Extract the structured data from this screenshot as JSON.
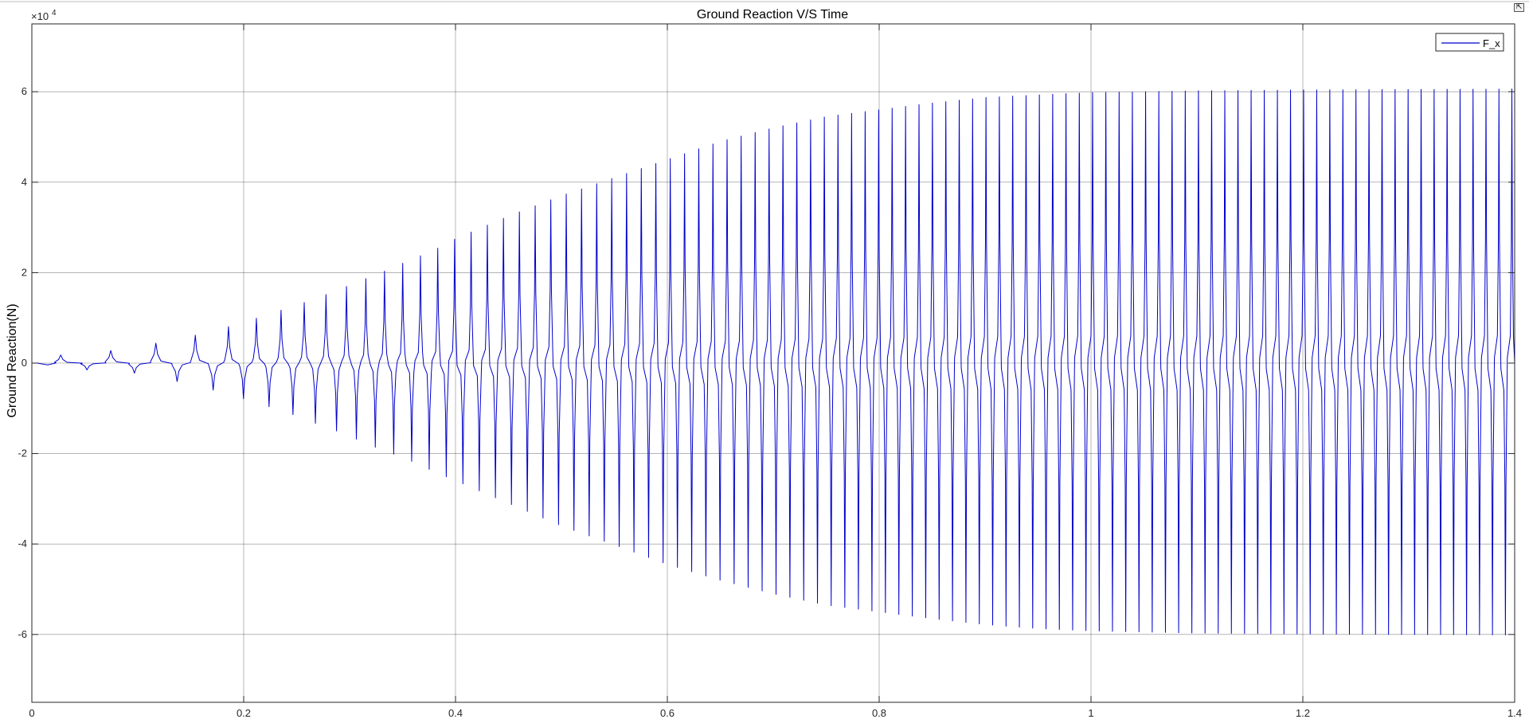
{
  "chart_data": {
    "type": "line",
    "title": "Ground Reaction V/S Time",
    "xlabel": "",
    "ylabel": "Ground Reaction(N)",
    "y_exponent_label": "×10",
    "y_exponent": "4",
    "xlim": [
      0,
      1.4
    ],
    "ylim": [
      -7.5,
      7.5
    ],
    "x_ticks": [
      0,
      0.2,
      0.4,
      0.6,
      0.8,
      1,
      1.2,
      1.4
    ],
    "x_tick_labels": [
      "0",
      "0.2",
      "0.4",
      "0.6",
      "0.8",
      "1",
      "1.2",
      "1.4"
    ],
    "y_ticks": [
      -6,
      -4,
      -2,
      0,
      2,
      4,
      6
    ],
    "y_tick_labels": [
      "-6",
      "-4",
      "-2",
      "0",
      "2",
      "4",
      "6"
    ],
    "grid": true,
    "legend_position": "top-right",
    "series": [
      {
        "name": "F_x",
        "color": "#0000cc",
        "description_values": {
          "positive_peaks": [
            [
              0.045,
              0.18
            ],
            [
              0.097,
              0.35
            ],
            [
              0.135,
              0.52
            ],
            [
              0.167,
              0.68
            ],
            [
              0.195,
              0.87
            ],
            [
              0.22,
              1.05
            ],
            [
              0.243,
              1.23
            ],
            [
              0.265,
              1.4
            ],
            [
              0.285,
              1.58
            ],
            [
              0.304,
              1.76
            ],
            [
              0.322,
              1.93
            ],
            [
              0.34,
              2.1
            ],
            [
              0.357,
              2.28
            ],
            [
              0.373,
              2.43
            ],
            [
              0.389,
              2.6
            ],
            [
              0.4,
              2.75
            ],
            [
              0.45,
              3.25
            ],
            [
              0.5,
              3.7
            ],
            [
              0.55,
              4.1
            ],
            [
              0.6,
              4.5
            ],
            [
              0.65,
              4.9
            ],
            [
              0.7,
              5.2
            ],
            [
              0.75,
              5.45
            ],
            [
              0.8,
              5.6
            ],
            [
              0.85,
              5.75
            ],
            [
              0.9,
              5.87
            ],
            [
              0.95,
              5.93
            ],
            [
              1.0,
              5.98
            ],
            [
              1.1,
              6.02
            ],
            [
              1.2,
              6.04
            ],
            [
              1.3,
              6.05
            ],
            [
              1.4,
              6.06
            ]
          ],
          "negative_peaks": [
            [
              0.075,
              -0.15
            ],
            [
              0.12,
              -0.3
            ],
            [
              0.152,
              -0.5
            ],
            [
              0.182,
              -0.65
            ],
            [
              0.208,
              -0.85
            ],
            [
              0.232,
              -1.02
            ],
            [
              0.254,
              -1.2
            ],
            [
              0.275,
              -1.4
            ],
            [
              0.294,
              -1.55
            ],
            [
              0.313,
              -1.75
            ],
            [
              0.33,
              -1.92
            ],
            [
              0.35,
              -2.08
            ],
            [
              0.366,
              -2.25
            ],
            [
              0.38,
              -2.4
            ],
            [
              0.395,
              -2.55
            ],
            [
              0.45,
              -3.1
            ],
            [
              0.5,
              -3.6
            ],
            [
              0.55,
              -4.02
            ],
            [
              0.6,
              -4.45
            ],
            [
              0.65,
              -4.8
            ],
            [
              0.7,
              -5.1
            ],
            [
              0.75,
              -5.35
            ],
            [
              0.8,
              -5.5
            ],
            [
              0.85,
              -5.65
            ],
            [
              0.9,
              -5.78
            ],
            [
              0.95,
              -5.87
            ],
            [
              1.0,
              -5.92
            ],
            [
              1.1,
              -5.97
            ],
            [
              1.2,
              -5.99
            ],
            [
              1.3,
              -6.0
            ],
            [
              1.4,
              -6.01
            ]
          ]
        }
      }
    ]
  }
}
